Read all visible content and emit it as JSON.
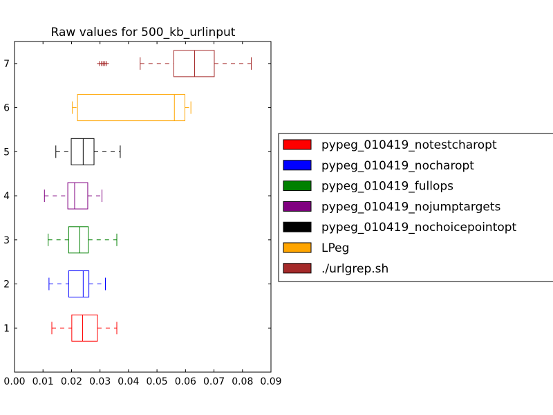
{
  "chart_data": {
    "type": "box",
    "orientation": "horizontal",
    "title": "Raw values for 500_kb_urlinput",
    "xlabel": "",
    "ylabel": "",
    "xlim": [
      0,
      0.09
    ],
    "ylim": [
      0,
      7.5
    ],
    "x_ticks": [
      "0.00",
      "0.01",
      "0.02",
      "0.03",
      "0.04",
      "0.05",
      "0.06",
      "0.07",
      "0.08",
      "0.09"
    ],
    "y_ticks": [
      "1",
      "2",
      "3",
      "4",
      "5",
      "6",
      "7"
    ],
    "legend_position": "right",
    "series": [
      {
        "name": "pypeg_010419_notestcharopt",
        "position": 1,
        "color": "#ff0000",
        "whisker_low": 0.0131,
        "q1": 0.0201,
        "median": 0.0239,
        "q3": 0.0291,
        "whisker_high": 0.0359,
        "outliers": []
      },
      {
        "name": "pypeg_010419_nocharopt",
        "position": 2,
        "color": "#0000ff",
        "whisker_low": 0.0121,
        "q1": 0.019,
        "median": 0.0241,
        "q3": 0.0261,
        "whisker_high": 0.0319,
        "outliers": []
      },
      {
        "name": "pypeg_010419_fullops",
        "position": 3,
        "color": "#008000",
        "whisker_low": 0.0118,
        "q1": 0.019,
        "median": 0.0229,
        "q3": 0.0259,
        "whisker_high": 0.0359,
        "outliers": []
      },
      {
        "name": "pypeg_010419_nojumptargets",
        "position": 4,
        "color": "#800080",
        "whisker_low": 0.0105,
        "q1": 0.0187,
        "median": 0.0211,
        "q3": 0.0257,
        "whisker_high": 0.0307,
        "outliers": []
      },
      {
        "name": "pypeg_010419_nochoicepointopt",
        "position": 5,
        "color": "#000000",
        "whisker_low": 0.0145,
        "q1": 0.0199,
        "median": 0.0241,
        "q3": 0.0279,
        "whisker_high": 0.0371,
        "outliers": []
      },
      {
        "name": "LPeg",
        "position": 6,
        "color": "#ffa500",
        "whisker_low": 0.0203,
        "q1": 0.0221,
        "median": 0.0561,
        "q3": 0.0598,
        "whisker_high": 0.0619,
        "outliers": []
      },
      {
        "name": "./urlgrep.sh",
        "position": 7,
        "color": "#a52a2a",
        "whisker_low": 0.0441,
        "q1": 0.0559,
        "median": 0.0632,
        "q3": 0.0701,
        "whisker_high": 0.0831,
        "outliers": [
          0.0298,
          0.0305,
          0.0311,
          0.0317,
          0.0323
        ]
      }
    ]
  }
}
